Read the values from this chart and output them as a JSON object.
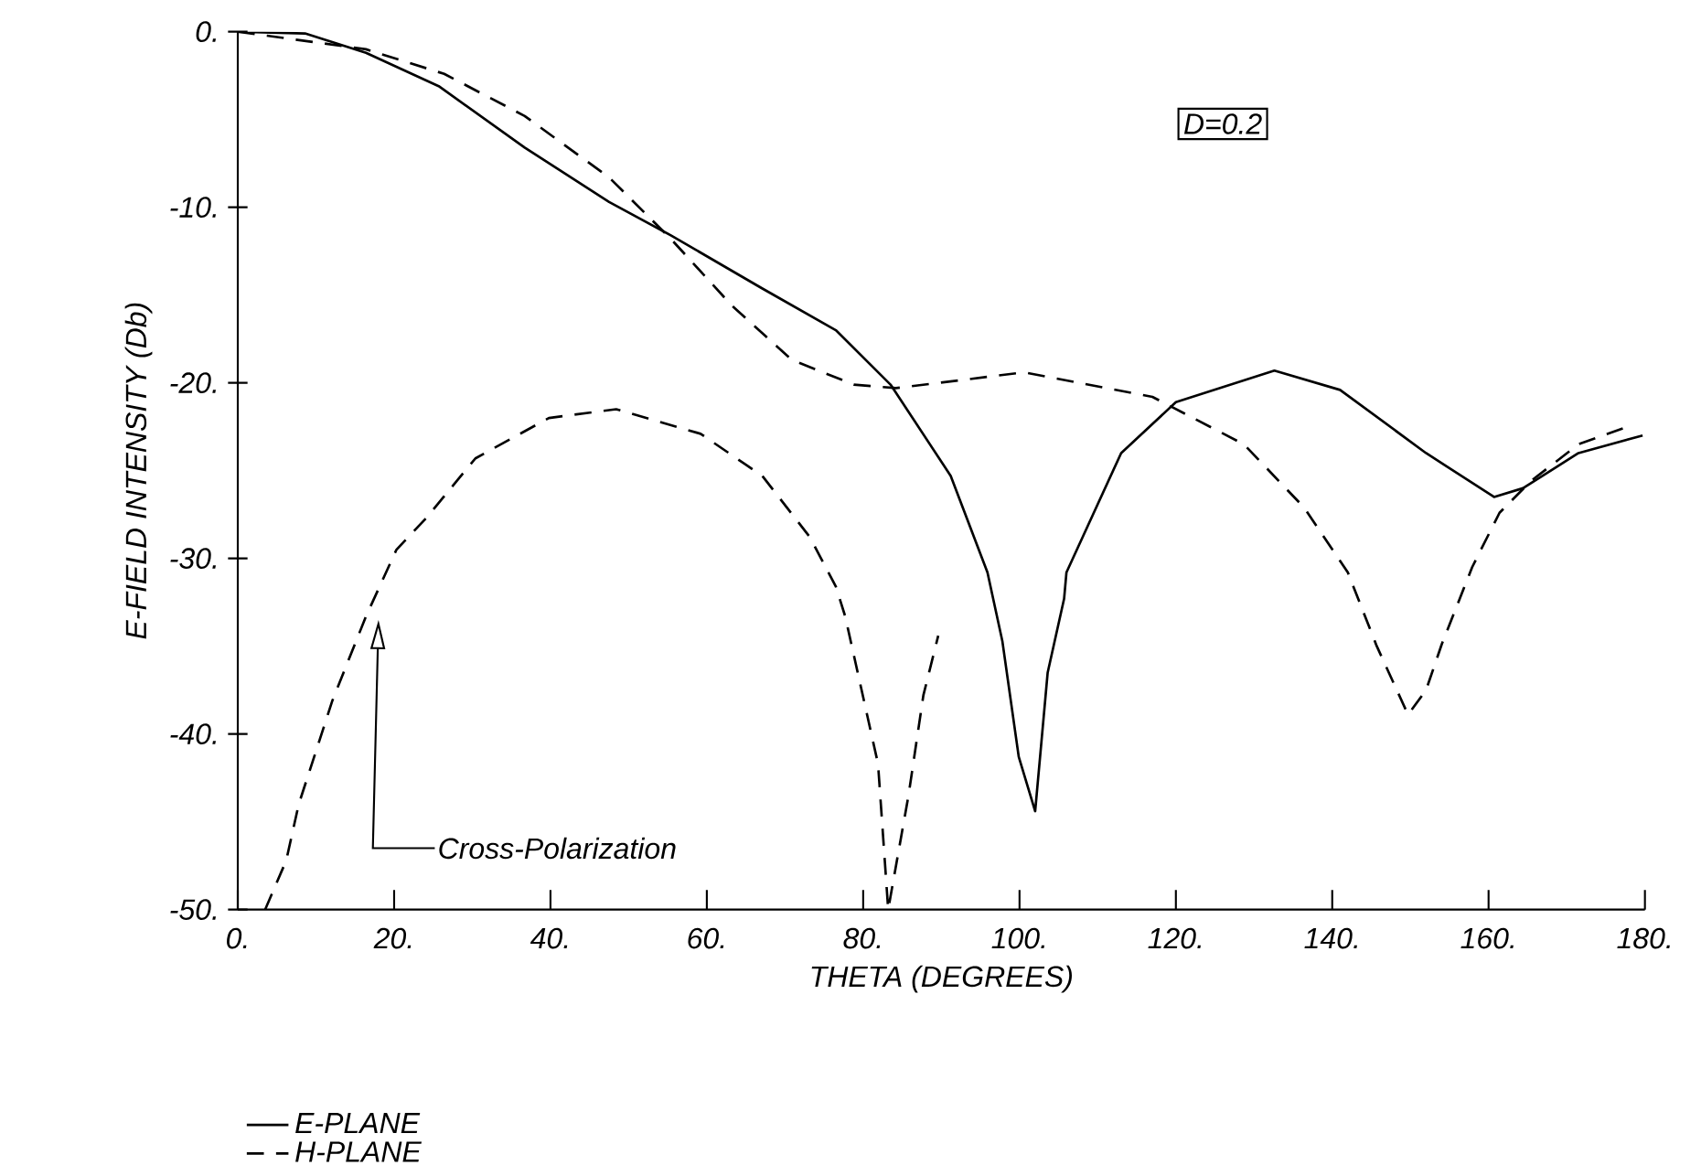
{
  "chart_data": {
    "type": "line",
    "xlabel": "THETA (DEGREES)",
    "ylabel": "E-FIELD INTENSITY (Db)",
    "xlim": [
      0,
      180
    ],
    "ylim": [
      -50,
      0
    ],
    "xticks": [
      {
        "value": 0,
        "label": "0."
      },
      {
        "value": 20,
        "label": "20."
      },
      {
        "value": 40,
        "label": "40."
      },
      {
        "value": 60,
        "label": "60."
      },
      {
        "value": 80,
        "label": "80."
      },
      {
        "value": 100,
        "label": "100."
      },
      {
        "value": 120,
        "label": "120."
      },
      {
        "value": 140,
        "label": "140."
      },
      {
        "value": 160,
        "label": "160."
      },
      {
        "value": 180,
        "label": "180."
      }
    ],
    "yticks": [
      {
        "value": 0,
        "label": "0."
      },
      {
        "value": -10,
        "label": "-10."
      },
      {
        "value": -20,
        "label": "-20."
      },
      {
        "value": -30,
        "label": "-30."
      },
      {
        "value": -40,
        "label": "-40."
      },
      {
        "value": -50,
        "label": "-50."
      }
    ],
    "grid": false,
    "legend": "bottom left",
    "marker": "none",
    "annotations": [
      "D=0.2",
      "Cross-Polarization"
    ],
    "series": [
      {
        "name": "E-PLANE",
        "color": "#000000",
        "line_style": "solid",
        "x": [
          0,
          8.6,
          16.4,
          25.7,
          36.7,
          47.5,
          55.4,
          67,
          76.5,
          83.5,
          91.2,
          95.9,
          97.8,
          99.9,
          102,
          103.6,
          105.7,
          106,
          113,
          120,
          132.6,
          141,
          152,
          160.7,
          164.4,
          171.5,
          179.7
        ],
        "values": [
          0,
          -0.1,
          -1.2,
          -3.1,
          -6.6,
          -9.7,
          -11.6,
          -14.6,
          -17,
          -20.1,
          -25.3,
          -30.8,
          -34.7,
          -41.3,
          -44.4,
          -36.5,
          -32.3,
          -30.8,
          -24,
          -21.1,
          -19.3,
          -20.4,
          -24,
          -26.5,
          -26,
          -24,
          -23
        ]
      },
      {
        "name": "H-PLANE",
        "color": "#000000",
        "line_style": "dashed",
        "x": [
          0,
          16.4,
          26.4,
          36.7,
          47.5,
          55.4,
          63.2,
          70.9,
          78.8,
          84.2,
          100.6,
          117,
          128.7,
          136.4,
          142,
          145.7,
          149.7,
          152,
          154,
          157.9,
          161.4,
          165.4,
          171.5,
          177.8
        ],
        "values": [
          0,
          -1,
          -2.4,
          -4.8,
          -8.3,
          -11.8,
          -15.6,
          -18.7,
          -20.1,
          -20.3,
          -19.4,
          -20.8,
          -23.5,
          -27.1,
          -30.8,
          -35,
          -38.9,
          -37.5,
          -34.9,
          -30.5,
          -27.4,
          -25.6,
          -23.5,
          -22.5
        ]
      },
      {
        "color": "#000000",
        "line_style": "dashed",
        "x": [
          3.5,
          6.2,
          7.8,
          12.1,
          16.4,
          20.3,
          24.1,
          30.4,
          39.8,
          48.4,
          59.2,
          67.1,
          73.2,
          76.5,
          77.7,
          81.9,
          83.2,
          85.8,
          87.7,
          89.6
        ],
        "values": [
          -50,
          -47.2,
          -44,
          -38.1,
          -33.3,
          -29.5,
          -27.7,
          -24.3,
          -22,
          -21.5,
          -22.9,
          -25.3,
          -28.8,
          -31.6,
          -33.3,
          -41.7,
          -50,
          -43.5,
          -37.8,
          -34.4
        ]
      }
    ]
  }
}
